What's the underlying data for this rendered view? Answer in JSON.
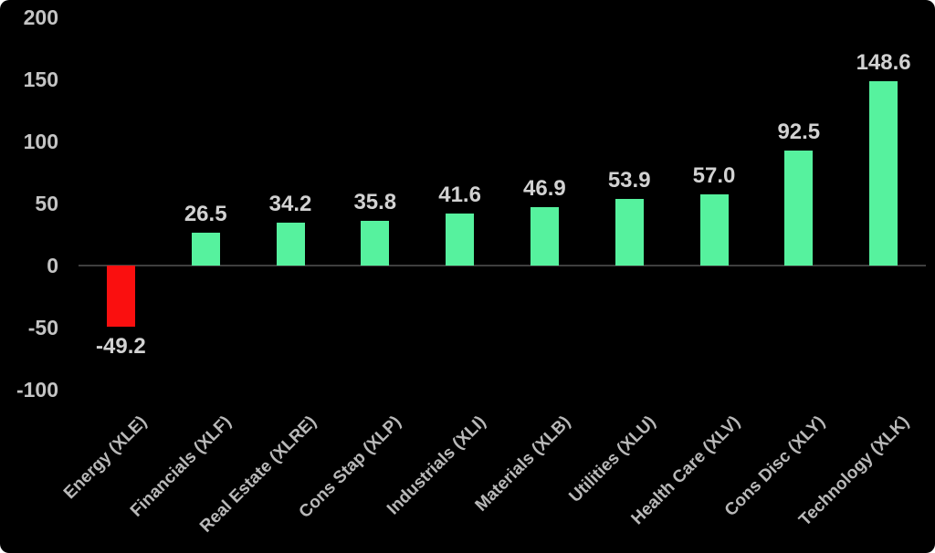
{
  "chart_data": {
    "type": "bar",
    "title": "",
    "xlabel": "",
    "ylabel": "",
    "categories": [
      "Energy (XLE)",
      "Financials (XLF)",
      "Real Estate (XLRE)",
      "Cons Stap (XLP)",
      "Industrials (XLI)",
      "Materials (XLB)",
      "Utilities (XLU)",
      "Health Care (XLV)",
      "Cons Disc (XLY)",
      "Technology (XLK)"
    ],
    "values": [
      -49.2,
      26.5,
      34.2,
      35.8,
      41.6,
      46.9,
      53.9,
      57.0,
      92.5,
      148.6
    ],
    "value_labels": [
      "-49.2",
      "26.5",
      "34.2",
      "35.8",
      "41.6",
      "46.9",
      "53.9",
      "57.0",
      "92.5",
      "148.6"
    ],
    "yticks": [
      200,
      150,
      100,
      50,
      0,
      -50,
      -100
    ],
    "ylim": [
      -100,
      200
    ],
    "grid": false,
    "legend": false,
    "background_color": "#000000",
    "positive_bar_color": "#56f29e",
    "negative_bar_color": "#fa0f0f",
    "axis_line_color": "#3f3f3f",
    "tick_label_color": "#c4c4c4",
    "data_label_color": "#d2d2d2",
    "category_label_color": "#b9b9b9"
  }
}
